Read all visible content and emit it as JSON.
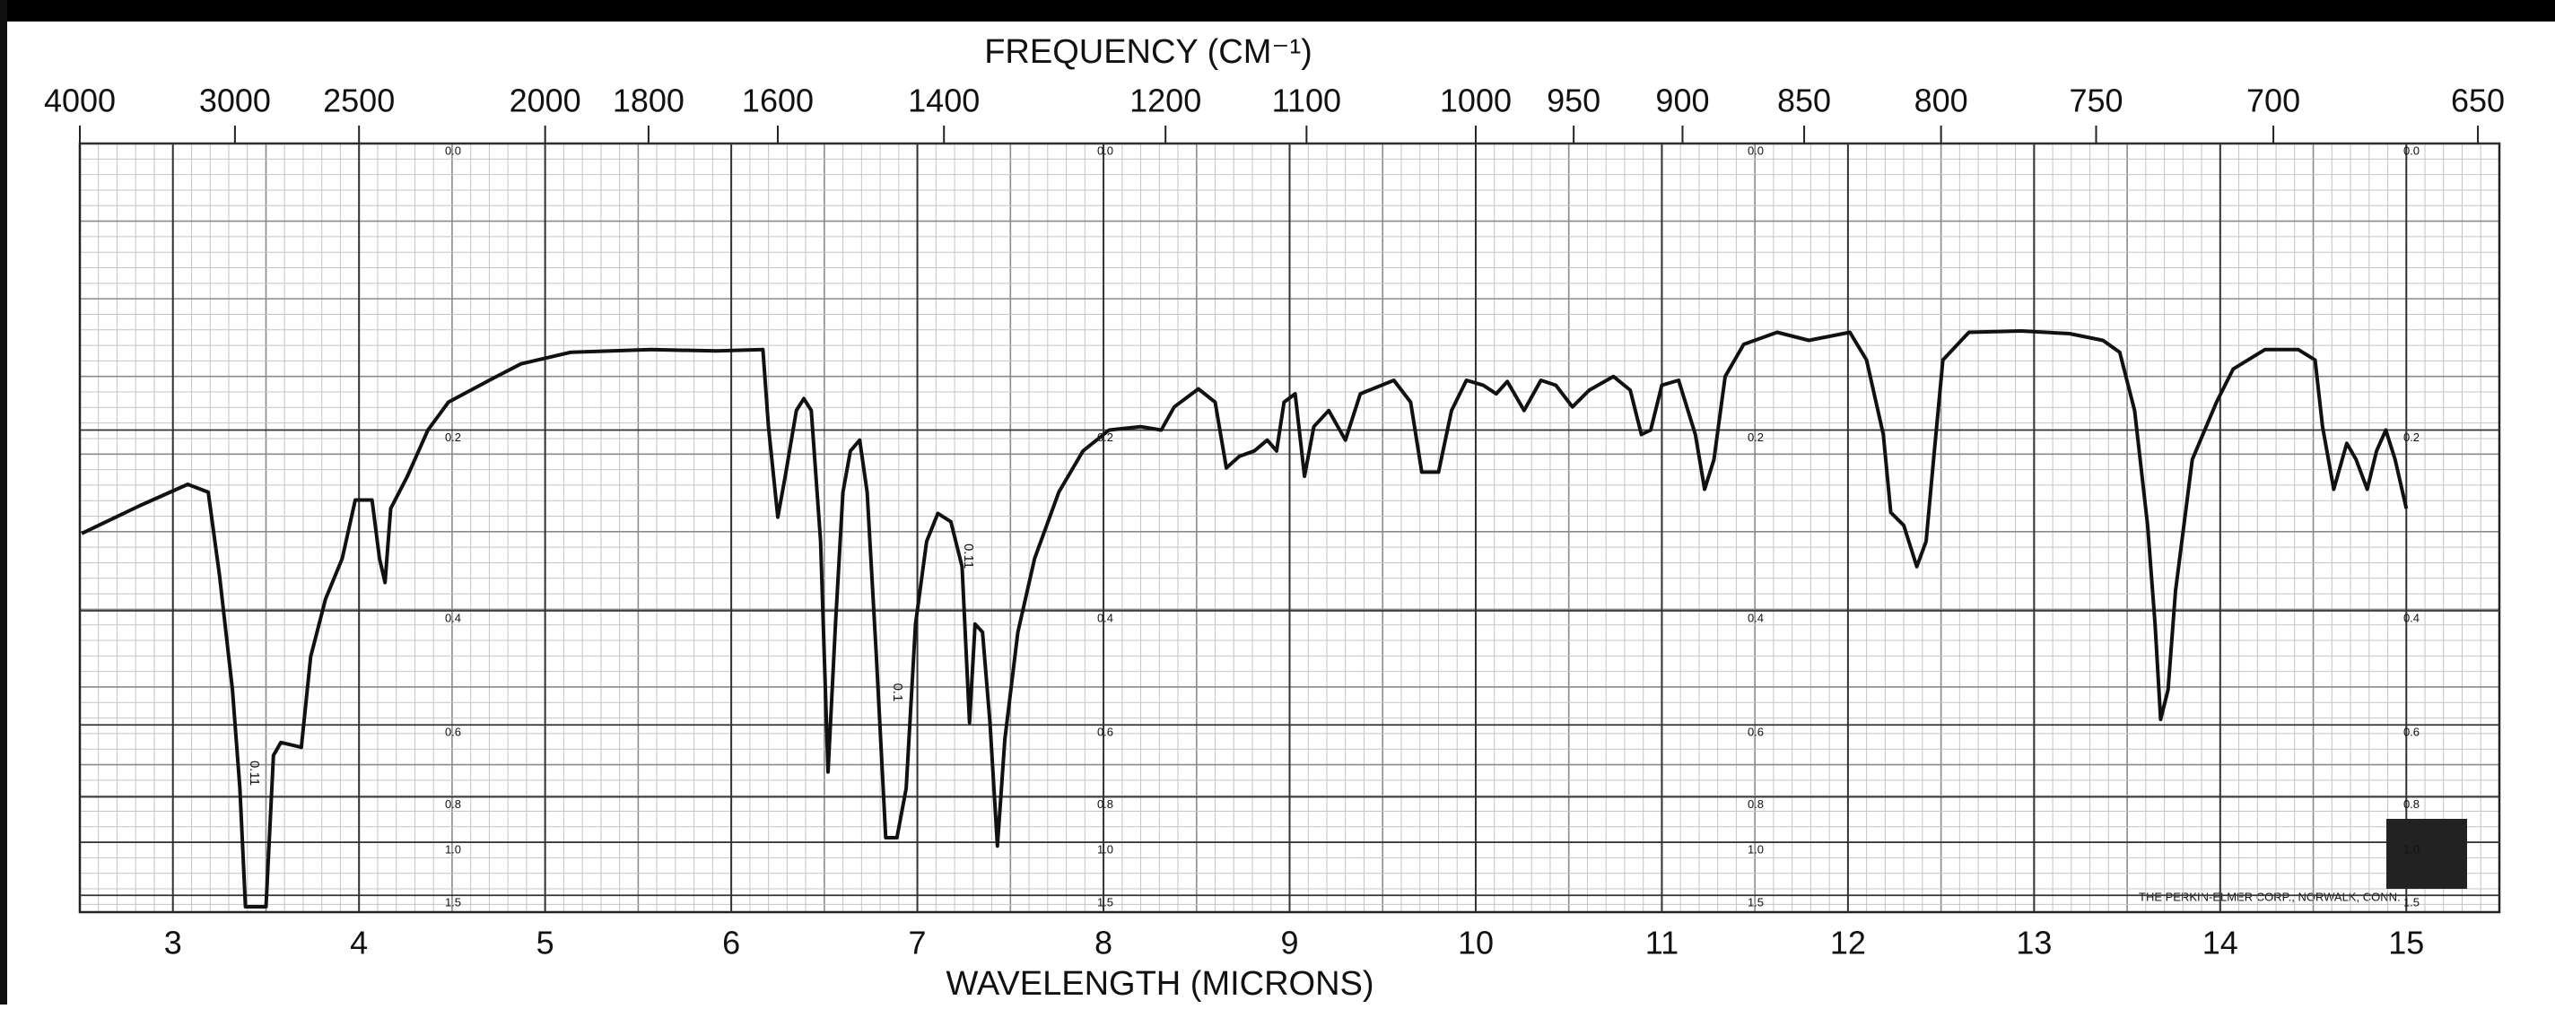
{
  "chart_data": {
    "type": "line",
    "title": "FREQUENCY (CM⁻¹)",
    "x_label": "WAVELENGTH (MICRONS)",
    "imprint": "THE PERKIN-ELMER CORP., NORWALK, CONN.",
    "annotations": [
      "0.11",
      "0.1",
      "0.11"
    ],
    "color": "#111111",
    "grid": true,
    "y_scale": "transmittance",
    "xlim": [
      2.5,
      15.5
    ],
    "xticks": [
      3,
      4,
      5,
      6,
      7,
      8,
      9,
      10,
      11,
      12,
      13,
      14,
      15
    ],
    "x2ticks": [
      4000,
      3000,
      2500,
      2000,
      1800,
      1600,
      1400,
      1200,
      1100,
      1000,
      950,
      900,
      850,
      800,
      750,
      700,
      650
    ],
    "ylim": [
      0,
      2
    ],
    "yticks": [
      {
        "value": 0,
        "label": "0.0"
      },
      0.2,
      0.4,
      0.6,
      0.8,
      {
        "value": 1,
        "label": "1.0"
      },
      1.5
    ],
    "x": [
      2.51,
      2.82,
      3.08,
      3.19,
      3.25,
      3.32,
      3.36,
      3.39,
      3.5,
      3.54,
      3.58,
      3.69,
      3.74,
      3.82,
      3.91,
      3.98,
      4.07,
      4.11,
      4.14,
      4.17,
      4.26,
      4.37,
      4.48,
      4.7,
      4.87,
      5.14,
      5.57,
      5.92,
      6.17,
      6.2,
      6.25,
      6.29,
      6.35,
      6.39,
      6.43,
      6.48,
      6.52,
      6.56,
      6.6,
      6.64,
      6.69,
      6.73,
      6.78,
      6.83,
      6.89,
      6.94,
      6.99,
      7.05,
      7.11,
      7.18,
      7.24,
      7.28,
      7.31,
      7.35,
      7.39,
      7.43,
      7.47,
      7.54,
      7.63,
      7.76,
      7.89,
      8.03,
      8.2,
      8.31,
      8.38,
      8.51,
      8.6,
      8.66,
      8.73,
      8.81,
      8.88,
      8.93,
      8.97,
      9.03,
      9.08,
      9.13,
      9.21,
      9.3,
      9.38,
      9.56,
      9.65,
      9.71,
      9.8,
      9.87,
      9.95,
      10.04,
      10.11,
      10.17,
      10.26,
      10.35,
      10.43,
      10.52,
      10.61,
      10.74,
      10.83,
      10.89,
      10.94,
      11.0,
      11.09,
      11.18,
      11.23,
      11.28,
      11.34,
      11.44,
      11.62,
      11.79,
      12.01,
      12.1,
      12.19,
      12.23,
      12.3,
      12.37,
      12.42,
      12.46,
      12.51,
      12.65,
      12.93,
      13.19,
      13.37,
      13.46,
      13.54,
      13.61,
      13.65,
      13.68,
      13.72,
      13.76,
      13.85,
      13.98,
      14.07,
      14.24,
      14.42,
      14.51,
      14.55,
      14.61,
      14.68,
      14.73,
      14.79,
      14.84,
      14.89,
      14.94,
      15.0
    ],
    "values": [
      0.303,
      0.273,
      0.251,
      0.259,
      0.352,
      0.528,
      0.771,
      1.772,
      1.772,
      0.674,
      0.641,
      0.653,
      0.47,
      0.384,
      0.332,
      0.267,
      0.267,
      0.332,
      0.362,
      0.276,
      0.243,
      0.2,
      0.176,
      0.158,
      0.145,
      0.136,
      0.134,
      0.135,
      0.134,
      0.197,
      0.285,
      0.243,
      0.183,
      0.173,
      0.183,
      0.312,
      0.72,
      0.419,
      0.259,
      0.219,
      0.209,
      0.259,
      0.47,
      0.975,
      0.975,
      0.771,
      0.419,
      0.312,
      0.281,
      0.29,
      0.342,
      0.595,
      0.419,
      0.431,
      0.595,
      1.021,
      0.633,
      0.431,
      0.332,
      0.259,
      0.219,
      0.2,
      0.197,
      0.2,
      0.18,
      0.165,
      0.176,
      0.235,
      0.224,
      0.219,
      0.209,
      0.219,
      0.176,
      0.169,
      0.243,
      0.197,
      0.183,
      0.209,
      0.169,
      0.158,
      0.176,
      0.239,
      0.239,
      0.183,
      0.158,
      0.162,
      0.169,
      0.159,
      0.183,
      0.158,
      0.162,
      0.18,
      0.166,
      0.155,
      0.166,
      0.204,
      0.2,
      0.162,
      0.158,
      0.204,
      0.256,
      0.227,
      0.155,
      0.13,
      0.121,
      0.127,
      0.121,
      0.142,
      0.204,
      0.28,
      0.294,
      0.342,
      0.312,
      0.227,
      0.142,
      0.121,
      0.12,
      0.122,
      0.127,
      0.136,
      0.183,
      0.294,
      0.419,
      0.588,
      0.528,
      0.373,
      0.227,
      0.176,
      0.149,
      0.134,
      0.134,
      0.142,
      0.197,
      0.256,
      0.212,
      0.227,
      0.256,
      0.219,
      0.2,
      0.227,
      0.276
    ]
  }
}
